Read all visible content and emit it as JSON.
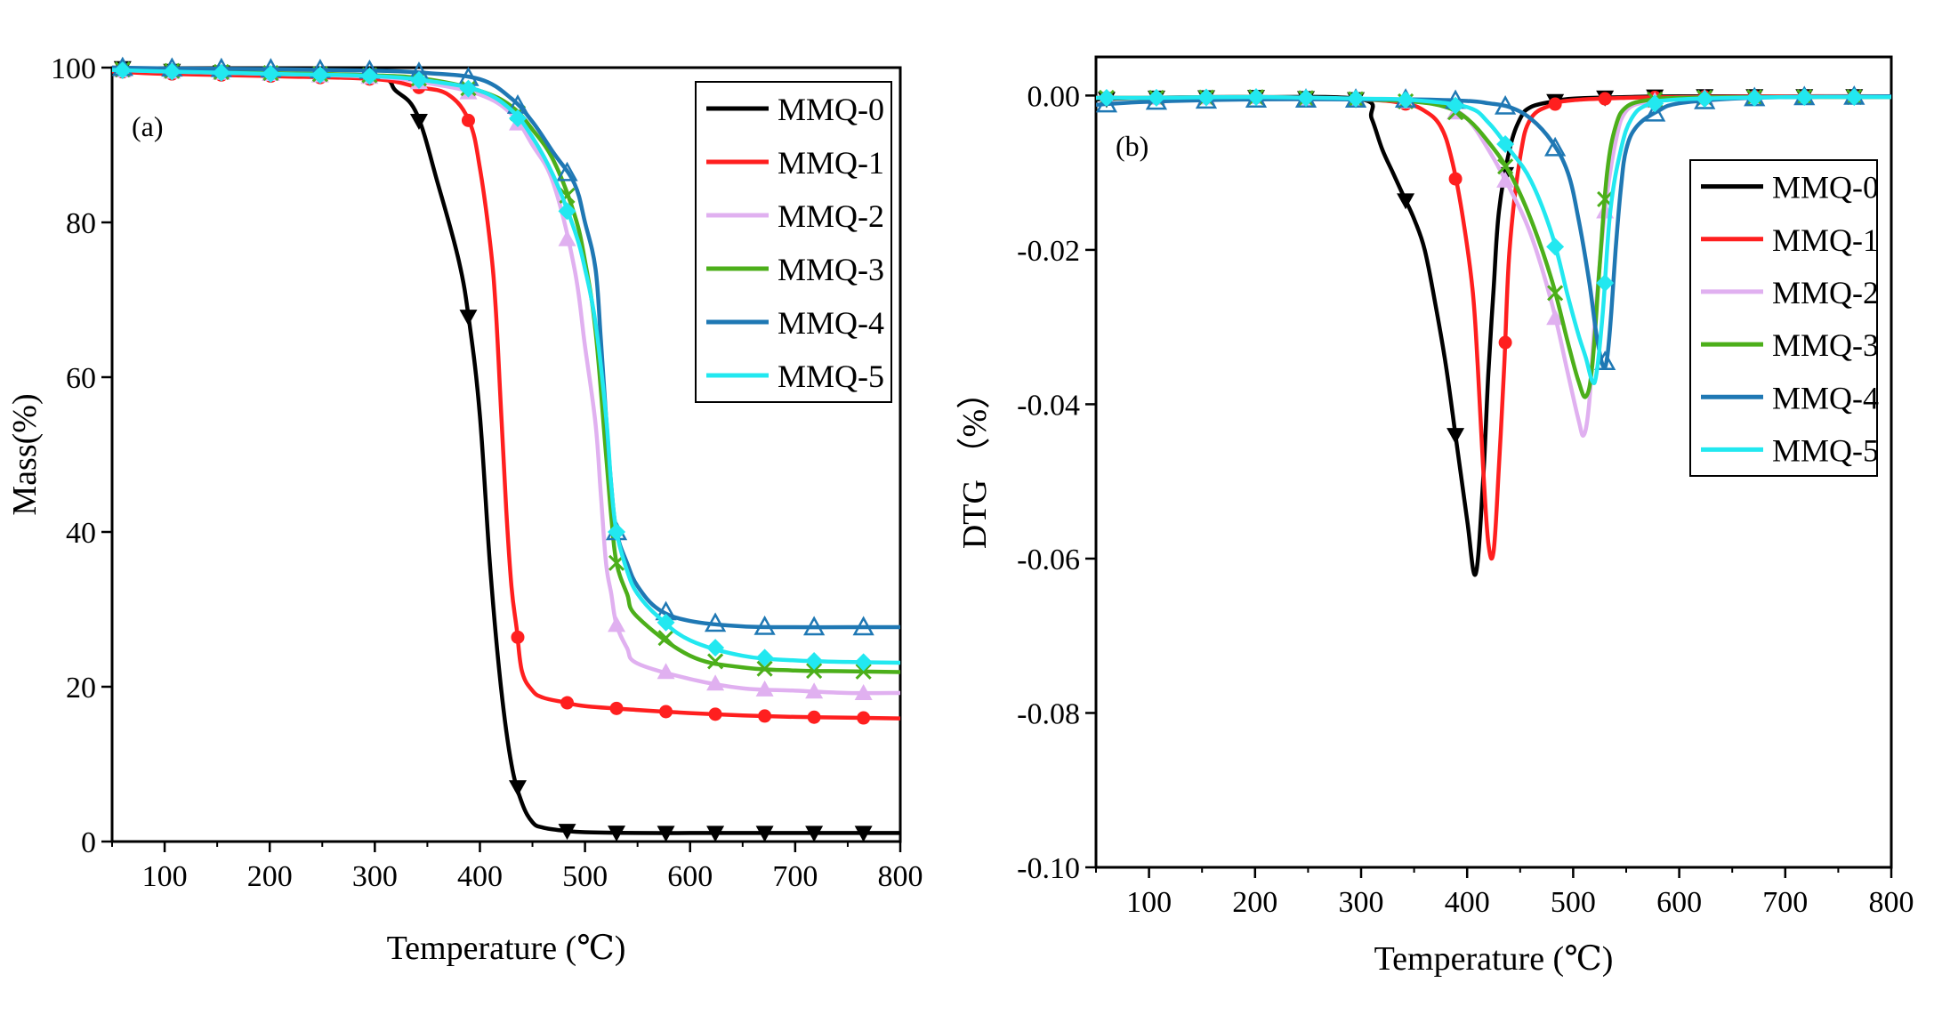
{
  "chart_data": [
    {
      "type": "line",
      "panel_label": "(a)",
      "xlabel": "Temperature (℃)",
      "ylabel": "Mass(%)",
      "xlim": [
        50,
        800
      ],
      "ylim": [
        0,
        100
      ],
      "xticks": [
        100,
        200,
        300,
        400,
        500,
        600,
        700,
        800
      ],
      "yticks": [
        0,
        20,
        40,
        60,
        80,
        100
      ],
      "legend_position": "top-right",
      "grid": false,
      "series": [
        {
          "name": "MMQ-0",
          "color": "#000000",
          "marker": "triangle-down",
          "x": [
            50,
            100,
            200,
            300,
            320,
            340,
            360,
            380,
            390,
            400,
            410,
            420,
            430,
            440,
            450,
            460,
            480,
            500,
            550,
            600,
            650,
            700,
            750,
            800
          ],
          "y": [
            100,
            99.6,
            99.2,
            98.8,
            97,
            94,
            85,
            75,
            67,
            55,
            35,
            20,
            10,
            5,
            2.5,
            1.8,
            1.4,
            1.2,
            1.1,
            1.1,
            1.1,
            1.1,
            1.1,
            1.1
          ]
        },
        {
          "name": "MMQ-1",
          "color": "#ff1f1f",
          "marker": "circle",
          "x": [
            50,
            100,
            200,
            300,
            340,
            370,
            390,
            400,
            410,
            415,
            420,
            425,
            430,
            435,
            440,
            450,
            460,
            480,
            500,
            550,
            600,
            650,
            700,
            750,
            800
          ],
          "y": [
            99.5,
            99.2,
            98.9,
            98.5,
            97.5,
            96.5,
            93,
            87,
            77,
            69,
            56,
            43,
            33,
            27.5,
            22,
            19.5,
            18.6,
            18,
            17.5,
            17,
            16.6,
            16.3,
            16.1,
            16,
            15.9
          ]
        },
        {
          "name": "MMQ-2",
          "color": "#e0b0f0",
          "marker": "triangle-up",
          "x": [
            50,
            100,
            200,
            300,
            350,
            400,
            430,
            450,
            470,
            490,
            500,
            510,
            515,
            520,
            525,
            530,
            540,
            550,
            600,
            650,
            700,
            750,
            800
          ],
          "y": [
            99.7,
            99.5,
            99.2,
            98.8,
            98,
            96.5,
            94,
            90,
            85,
            74,
            64,
            54,
            45,
            36,
            32,
            28,
            25,
            23,
            21,
            19.8,
            19.5,
            19.2,
            19.2
          ]
        },
        {
          "name": "MMQ-3",
          "color": "#4caf1a",
          "marker": "x",
          "x": [
            50,
            100,
            200,
            300,
            350,
            400,
            430,
            450,
            470,
            490,
            500,
            510,
            520,
            525,
            530,
            540,
            550,
            600,
            650,
            700,
            750,
            800
          ],
          "y": [
            99.8,
            99.6,
            99.3,
            99,
            98.5,
            97,
            95,
            92,
            88,
            81,
            75,
            66,
            50,
            42,
            36,
            32,
            29,
            24,
            22.5,
            22.1,
            22,
            21.9
          ]
        },
        {
          "name": "MMQ-4",
          "color": "#1f78b4",
          "marker": "triangle-up-open",
          "x": [
            50,
            100,
            200,
            300,
            350,
            400,
            430,
            450,
            470,
            490,
            500,
            510,
            515,
            520,
            525,
            530,
            540,
            550,
            570,
            600,
            650,
            700,
            750,
            800
          ],
          "y": [
            100,
            99.9,
            99.8,
            99.6,
            99.3,
            98.5,
            96,
            93,
            89,
            85,
            80,
            74,
            65,
            55,
            46,
            40,
            36,
            33,
            30,
            28.5,
            27.8,
            27.7,
            27.7,
            27.7
          ]
        },
        {
          "name": "MMQ-5",
          "color": "#22e8f0",
          "marker": "diamond",
          "x": [
            50,
            100,
            200,
            300,
            350,
            400,
            430,
            450,
            470,
            490,
            500,
            510,
            520,
            525,
            530,
            540,
            550,
            570,
            600,
            650,
            700,
            750,
            800
          ],
          "y": [
            99.7,
            99.5,
            99.2,
            98.9,
            98.3,
            97,
            94.5,
            91,
            86,
            79,
            74,
            67,
            55,
            46,
            40,
            35,
            32,
            29,
            26,
            24,
            23.4,
            23.2,
            23.1
          ]
        }
      ]
    },
    {
      "type": "line",
      "panel_label": "(b)",
      "xlabel": "Temperature (℃)",
      "ylabel": "DTG （%）",
      "xlim": [
        50,
        800
      ],
      "ylim": [
        -0.1,
        0.005
      ],
      "xticks": [
        100,
        200,
        300,
        400,
        500,
        600,
        700,
        800
      ],
      "yticks": [
        0.0,
        -0.02,
        -0.04,
        -0.06,
        -0.08,
        -0.1
      ],
      "ytick_labels": [
        "0.00",
        "-0.02",
        "-0.04",
        "-0.06",
        "-0.08",
        "-0.10"
      ],
      "legend_position": "right",
      "grid": false,
      "series": [
        {
          "name": "MMQ-0",
          "color": "#000000",
          "marker": "triangle-down",
          "x": [
            50,
            100,
            200,
            300,
            310,
            320,
            330,
            340,
            350,
            360,
            370,
            380,
            390,
            400,
            408,
            415,
            420,
            425,
            430,
            440,
            450,
            460,
            480,
            500,
            550,
            600,
            700,
            800
          ],
          "y": [
            -0.0005,
            -0.0003,
            -0.0002,
            -0.0005,
            -0.003,
            -0.007,
            -0.01,
            -0.013,
            -0.016,
            -0.02,
            -0.027,
            -0.035,
            -0.045,
            -0.055,
            -0.062,
            -0.05,
            -0.036,
            -0.025,
            -0.015,
            -0.007,
            -0.003,
            -0.0015,
            -0.0008,
            -0.0004,
            -0.0002,
            -0.0001,
            -0.0001,
            -0.0001
          ]
        },
        {
          "name": "MMQ-1",
          "color": "#ff1f1f",
          "marker": "circle",
          "x": [
            50,
            100,
            200,
            300,
            340,
            360,
            375,
            385,
            395,
            405,
            410,
            415,
            420,
            425,
            430,
            435,
            440,
            450,
            460,
            480,
            500,
            550,
            600,
            700,
            800
          ],
          "y": [
            -0.0003,
            -0.0003,
            -0.0002,
            -0.0005,
            -0.001,
            -0.002,
            -0.004,
            -0.008,
            -0.015,
            -0.025,
            -0.035,
            -0.048,
            -0.058,
            -0.059,
            -0.048,
            -0.035,
            -0.02,
            -0.008,
            -0.003,
            -0.0012,
            -0.0006,
            -0.0003,
            -0.0002,
            -0.0001,
            -0.0001
          ]
        },
        {
          "name": "MMQ-2",
          "color": "#e0b0f0",
          "marker": "triangle-up",
          "x": [
            50,
            100,
            200,
            300,
            350,
            380,
            400,
            420,
            440,
            460,
            480,
            495,
            505,
            510,
            515,
            520,
            530,
            540,
            550,
            570,
            600,
            700,
            800
          ],
          "y": [
            -0.0003,
            -0.0003,
            -0.0002,
            -0.0005,
            -0.0008,
            -0.0015,
            -0.003,
            -0.007,
            -0.012,
            -0.018,
            -0.027,
            -0.036,
            -0.042,
            -0.044,
            -0.04,
            -0.03,
            -0.015,
            -0.006,
            -0.002,
            -0.0008,
            -0.0003,
            -0.0002,
            -0.0002
          ]
        },
        {
          "name": "MMQ-3",
          "color": "#4caf1a",
          "marker": "x",
          "x": [
            50,
            100,
            200,
            300,
            350,
            380,
            400,
            420,
            440,
            460,
            480,
            495,
            505,
            512,
            518,
            525,
            532,
            540,
            550,
            570,
            600,
            700,
            800
          ],
          "y": [
            -0.0003,
            -0.0003,
            -0.0002,
            -0.0005,
            -0.0008,
            -0.0015,
            -0.003,
            -0.006,
            -0.01,
            -0.016,
            -0.024,
            -0.032,
            -0.037,
            -0.039,
            -0.035,
            -0.022,
            -0.01,
            -0.004,
            -0.0015,
            -0.0006,
            -0.0003,
            -0.0002,
            -0.0002
          ]
        },
        {
          "name": "MMQ-4",
          "color": "#1f78b4",
          "marker": "triangle-up-open",
          "x": [
            50,
            100,
            200,
            300,
            350,
            400,
            420,
            440,
            460,
            480,
            495,
            505,
            515,
            522,
            528,
            532,
            536,
            540,
            545,
            550,
            560,
            580,
            600,
            650,
            700,
            800
          ],
          "y": [
            -0.0012,
            -0.0008,
            -0.0005,
            -0.0005,
            -0.0005,
            -0.0007,
            -0.001,
            -0.0015,
            -0.003,
            -0.006,
            -0.01,
            -0.016,
            -0.024,
            -0.031,
            -0.035,
            -0.034,
            -0.028,
            -0.02,
            -0.012,
            -0.007,
            -0.004,
            -0.002,
            -0.001,
            -0.0004,
            -0.0002,
            -0.0001
          ]
        },
        {
          "name": "MMQ-5",
          "color": "#22e8f0",
          "marker": "diamond",
          "x": [
            50,
            100,
            200,
            300,
            350,
            400,
            420,
            440,
            460,
            480,
            495,
            505,
            512,
            518,
            522,
            528,
            535,
            545,
            555,
            570,
            600,
            700,
            800
          ],
          "y": [
            -0.0003,
            -0.0003,
            -0.0002,
            -0.0004,
            -0.0006,
            -0.0015,
            -0.0035,
            -0.007,
            -0.011,
            -0.018,
            -0.026,
            -0.031,
            -0.034,
            -0.037,
            -0.036,
            -0.028,
            -0.015,
            -0.007,
            -0.003,
            -0.0012,
            -0.0005,
            -0.0002,
            -0.0002
          ]
        }
      ]
    }
  ]
}
